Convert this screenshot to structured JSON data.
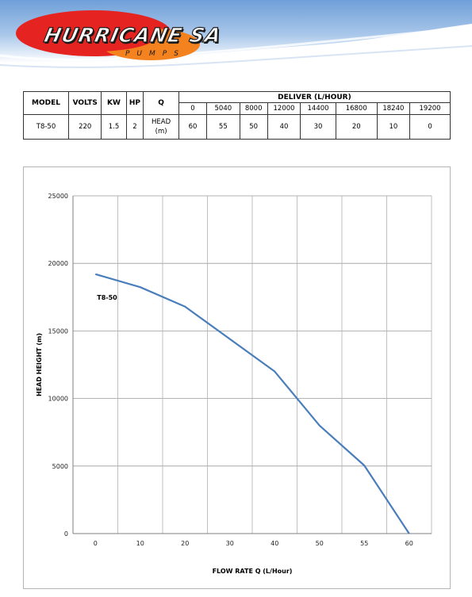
{
  "header": {
    "brand": "HURRICANE SA",
    "subtitle": "PUMPS"
  },
  "table": {
    "columns": [
      "MODEL",
      "VOLTS",
      "KW",
      "HP",
      "Q"
    ],
    "deliver_header": "DELIVER (L/HOUR)",
    "flow_values": [
      "0",
      "5040",
      "8000",
      "12000",
      "14400",
      "16800",
      "18240",
      "19200"
    ],
    "row": {
      "model": "T8-50",
      "volts": "220",
      "kw": "1.5",
      "hp": "2",
      "q": "HEAD (m)",
      "head_values": [
        "60",
        "55",
        "50",
        "40",
        "30",
        "20",
        "10",
        "0"
      ]
    }
  },
  "chart_data": {
    "type": "line",
    "title": "",
    "xlabel": "FLOW RATE Q (L/Hour)",
    "ylabel": "HEAD HEIGHT (m)",
    "categories": [
      "0",
      "10",
      "20",
      "30",
      "40",
      "50",
      "55",
      "60"
    ],
    "x": [
      0,
      10,
      20,
      30,
      40,
      50,
      55,
      60
    ],
    "y_ticks": [
      0,
      5000,
      10000,
      15000,
      20000,
      25000
    ],
    "ylim": [
      0,
      25000
    ],
    "grid": true,
    "series": [
      {
        "name": "T8-50",
        "color": "#4a7ebb",
        "x": [
          0,
          10,
          20,
          40,
          50,
          55,
          60
        ],
        "values": [
          19200,
          18240,
          16800,
          12000,
          8000,
          5040,
          0
        ]
      }
    ]
  }
}
